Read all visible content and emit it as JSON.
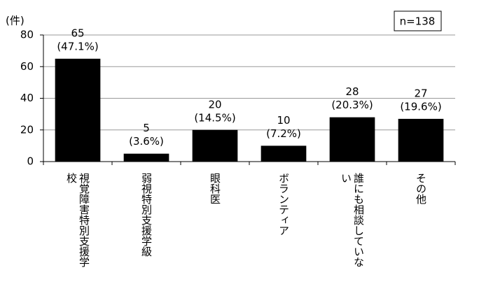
{
  "chart_data": {
    "type": "bar",
    "y_label": "(件)",
    "note": "n=138",
    "categories": [
      "視覚障害特別支援学校",
      "弱視特別支援学級",
      "眼科医",
      "ボランティア",
      "誰にも相談していない",
      "その他"
    ],
    "values": [
      65,
      5,
      20,
      10,
      28,
      27
    ],
    "percent_labels": [
      "(47.1%)",
      "(3.6%)",
      "(14.5%)",
      "(7.2%)",
      "(20.3%)",
      "(19.6%)"
    ],
    "color": "#000000",
    "ylim": [
      0,
      80
    ],
    "yticks": [
      0,
      20,
      40,
      60,
      80
    ],
    "grid": true
  }
}
